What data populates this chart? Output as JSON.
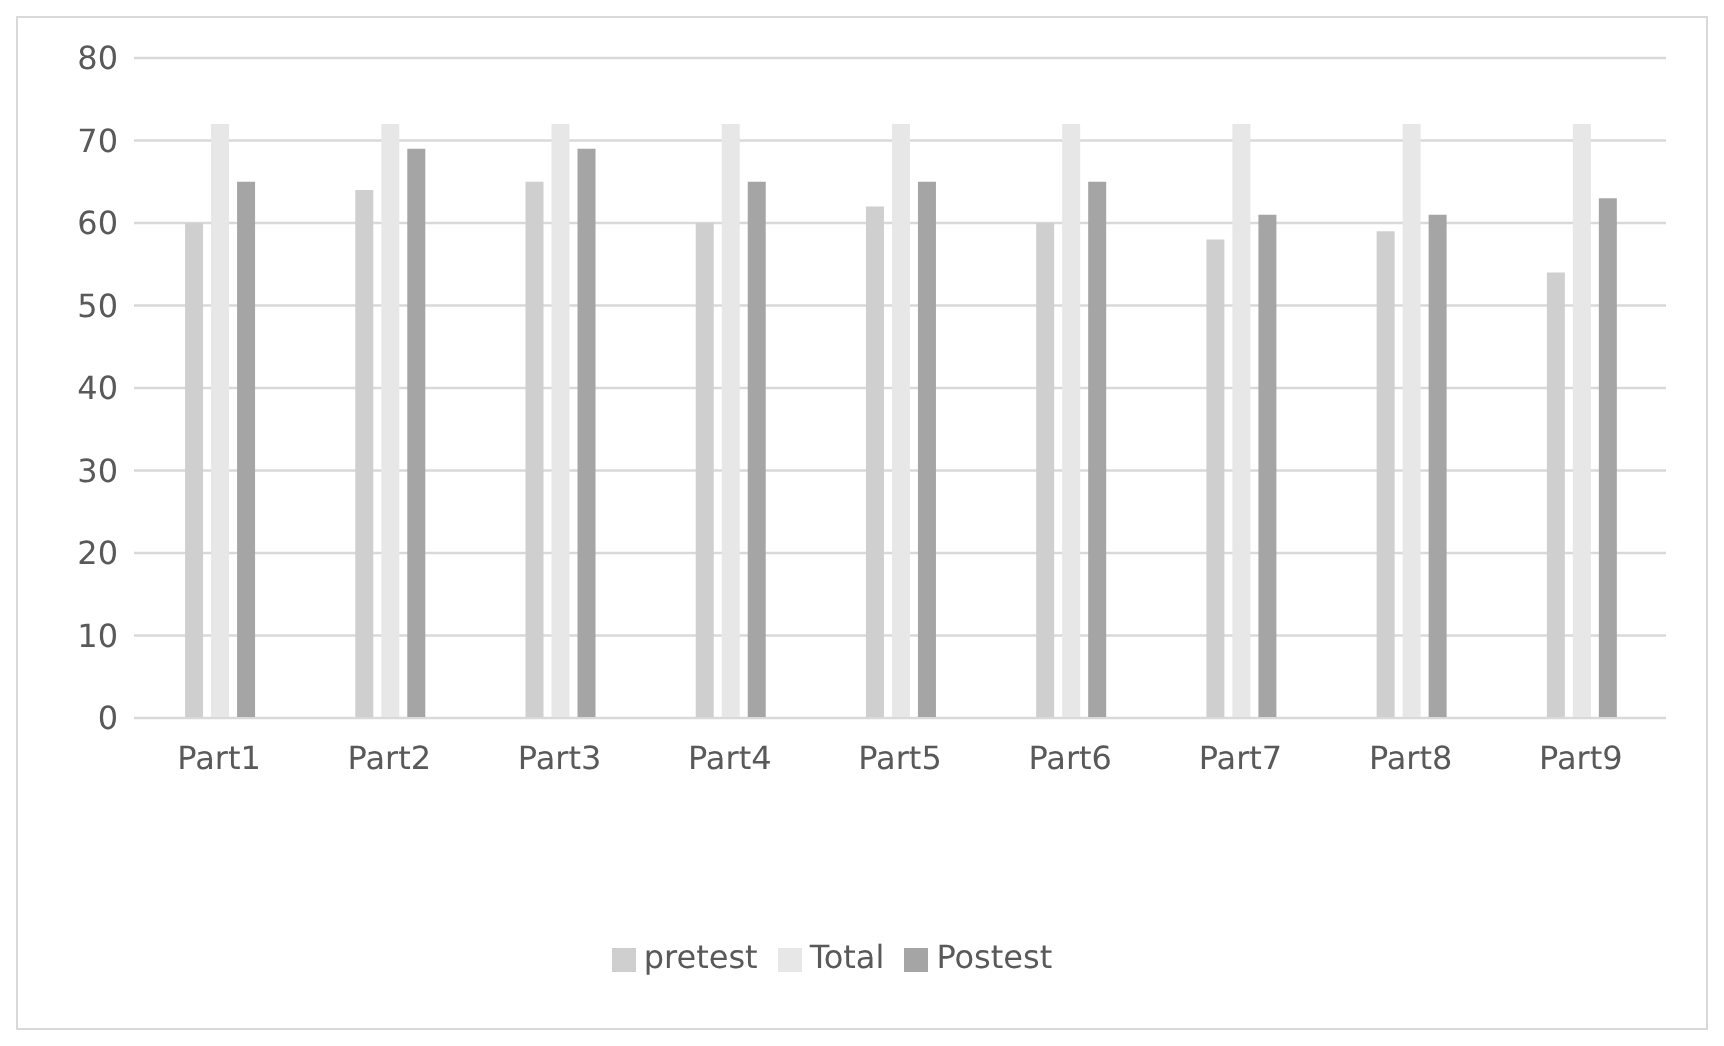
{
  "chart_data": {
    "type": "bar",
    "categories": [
      "Part1",
      "Part2",
      "Part3",
      "Part4",
      "Part5",
      "Part6",
      "Part7",
      "Part8",
      "Part9"
    ],
    "series": [
      {
        "name": "pretest",
        "color": "#d0cfcf",
        "values": [
          60,
          64,
          65,
          60,
          62,
          60,
          58,
          59,
          54
        ]
      },
      {
        "name": "Total",
        "color": "#e7e7e7",
        "values": [
          72,
          72,
          72,
          72,
          72,
          72,
          72,
          72,
          72
        ]
      },
      {
        "name": "Postest",
        "color": "#a5a5a5",
        "values": [
          65,
          69,
          69,
          65,
          65,
          65,
          61,
          61,
          63
        ]
      }
    ],
    "ylim": [
      0,
      80
    ],
    "yticks": [
      0,
      10,
      20,
      30,
      40,
      50,
      60,
      70,
      80
    ],
    "grid": "y",
    "legend": "bottom"
  }
}
